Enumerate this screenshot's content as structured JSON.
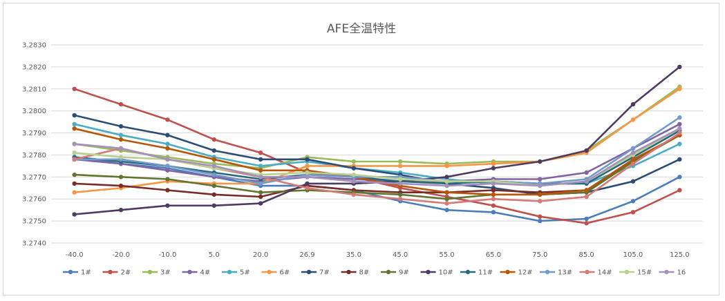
{
  "chart_data": {
    "type": "line",
    "title": "AFE全温特性",
    "xlabel": "",
    "ylabel": "",
    "ylim": [
      3.274,
      3.283
    ],
    "yticks": [
      "3.2740",
      "3.2750",
      "3.2760",
      "3.2770",
      "3.2780",
      "3.2790",
      "3.2800",
      "3.2810",
      "3.2820",
      "3.2830"
    ],
    "categories": [
      "-40.0",
      "-20.0",
      "-10.0",
      "5.0",
      "20.0",
      "26.9",
      "35.0",
      "45.0",
      "55.0",
      "65.0",
      "75.0",
      "85.0",
      "105.0",
      "125.0"
    ],
    "grid": true,
    "legend_position": "bottom",
    "series": [
      {
        "name": "1#",
        "color": "#4a7ebb",
        "values": [
          3.2779,
          3.2776,
          3.2774,
          3.277,
          3.2766,
          3.2766,
          3.2764,
          3.2759,
          3.2755,
          3.2754,
          3.275,
          3.2751,
          3.2759,
          3.277
        ]
      },
      {
        "name": "2#",
        "color": "#c0504d",
        "values": [
          3.281,
          3.2803,
          3.2796,
          3.2787,
          3.2781,
          3.2772,
          3.277,
          3.2765,
          3.2761,
          3.2757,
          3.2752,
          3.2749,
          3.2754,
          3.2764
        ]
      },
      {
        "name": "3#",
        "color": "#9bbb59",
        "values": [
          3.2785,
          3.2782,
          3.2779,
          3.2776,
          3.2774,
          3.2779,
          3.2777,
          3.2777,
          3.2776,
          3.2777,
          3.2777,
          3.2782,
          3.2796,
          3.2811
        ]
      },
      {
        "name": "4#",
        "color": "#8064a2",
        "values": [
          3.2778,
          3.2776,
          3.2773,
          3.277,
          3.2768,
          3.277,
          3.2769,
          3.2768,
          3.2768,
          3.2769,
          3.2769,
          3.2772,
          3.2783,
          3.2794
        ]
      },
      {
        "name": "5#",
        "color": "#4bacc6",
        "values": [
          3.2794,
          3.2789,
          3.2785,
          3.2779,
          3.2775,
          3.2777,
          3.2774,
          3.2772,
          3.2769,
          3.2767,
          3.2767,
          3.2767,
          3.2775,
          3.2785
        ]
      },
      {
        "name": "6#",
        "color": "#f79646",
        "values": [
          3.2763,
          3.2765,
          3.2768,
          3.2767,
          3.2767,
          3.2775,
          3.2775,
          3.2775,
          3.2775,
          3.2776,
          3.2777,
          3.2781,
          3.2796,
          3.281
        ]
      },
      {
        "name": "7#",
        "color": "#2c4d75",
        "values": [
          3.2798,
          3.2793,
          3.2789,
          3.2782,
          3.2778,
          3.2778,
          3.2774,
          3.2771,
          3.2767,
          3.2765,
          3.2762,
          3.2763,
          3.2768,
          3.2778
        ]
      },
      {
        "name": "8#",
        "color": "#772c2a",
        "values": [
          3.2767,
          3.2766,
          3.2764,
          3.2762,
          3.2761,
          3.2766,
          3.2764,
          3.2763,
          3.2763,
          3.2764,
          3.2763,
          3.2764,
          3.2777,
          3.2789
        ]
      },
      {
        "name": "9#",
        "color": "#5f7530",
        "values": [
          3.2771,
          3.277,
          3.2769,
          3.2766,
          3.2763,
          3.2764,
          3.2763,
          3.2762,
          3.276,
          3.2762,
          3.2762,
          3.2763,
          3.2777,
          3.2789
        ]
      },
      {
        "name": "10#",
        "color": "#4d3b62",
        "values": [
          3.2753,
          3.2755,
          3.2757,
          3.2757,
          3.2758,
          3.2767,
          3.2767,
          3.2768,
          3.277,
          3.2774,
          3.2777,
          3.2782,
          3.2803,
          3.282
        ]
      },
      {
        "name": "11#",
        "color": "#276a7c",
        "values": [
          3.2779,
          3.2777,
          3.2775,
          3.2772,
          3.2769,
          3.2771,
          3.277,
          3.2768,
          3.2767,
          3.2768,
          3.2767,
          3.2767,
          3.2779,
          3.2791
        ]
      },
      {
        "name": "12#",
        "color": "#b65708",
        "values": [
          3.2792,
          3.2787,
          3.2783,
          3.2778,
          3.2773,
          3.2773,
          3.277,
          3.2766,
          3.2763,
          3.2762,
          3.2762,
          3.2764,
          3.2778,
          3.2789
        ]
      },
      {
        "name": "13#",
        "color": "#729aca",
        "values": [
          3.2778,
          3.2778,
          3.2775,
          3.2771,
          3.2767,
          3.2771,
          3.277,
          3.277,
          3.2768,
          3.2768,
          3.2767,
          3.2769,
          3.2783,
          3.2797
        ]
      },
      {
        "name": "14#",
        "color": "#d47a78",
        "values": [
          3.2778,
          3.2783,
          3.2778,
          3.2774,
          3.277,
          3.2765,
          3.2762,
          3.276,
          3.2758,
          3.276,
          3.2759,
          3.2761,
          3.2776,
          3.279
        ]
      },
      {
        "name": "15#",
        "color": "#b9d08e",
        "values": [
          3.2781,
          3.2779,
          3.2778,
          3.2774,
          3.2771,
          3.2772,
          3.2771,
          3.2769,
          3.2768,
          3.2768,
          3.2766,
          3.2768,
          3.278,
          3.2792
        ]
      },
      {
        "name": "16",
        "color": "#a390bc",
        "values": [
          3.2785,
          3.2783,
          3.2778,
          3.2775,
          3.277,
          3.277,
          3.2768,
          3.2767,
          3.2766,
          3.2767,
          3.2766,
          3.2768,
          3.2781,
          3.2792
        ]
      }
    ]
  }
}
